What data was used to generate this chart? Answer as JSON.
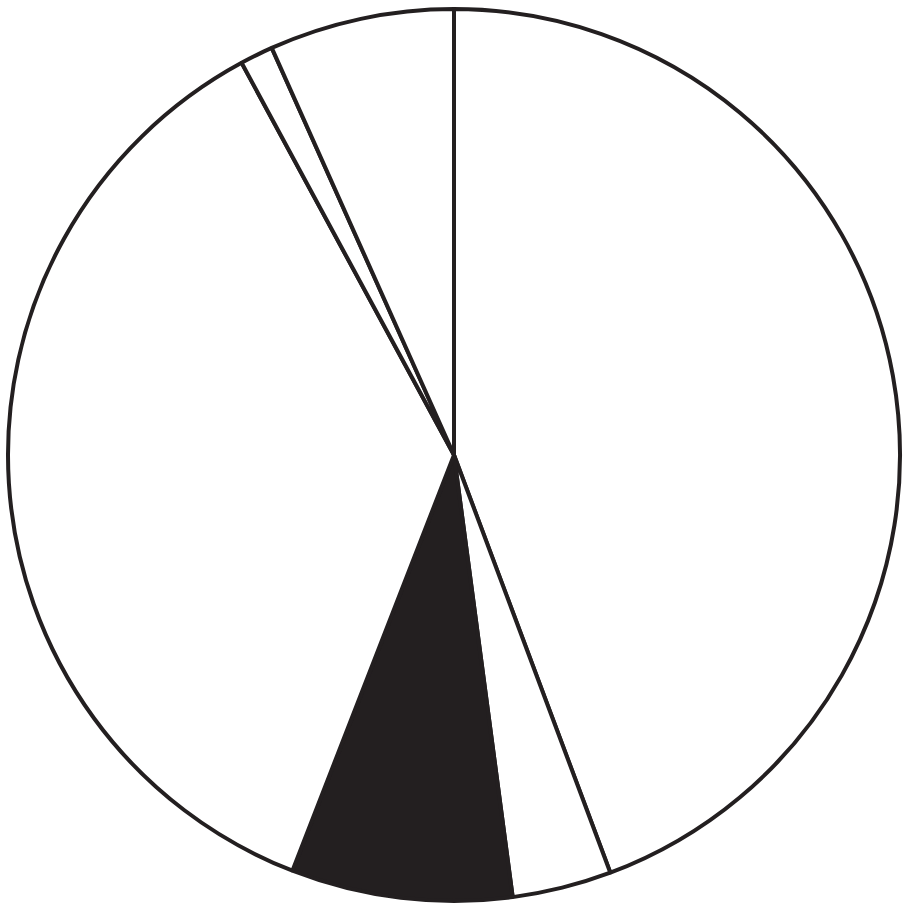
{
  "chart_data": {
    "type": "pie",
    "categories": [
      null,
      null,
      null,
      null,
      null,
      null
    ],
    "values": [
      44.3,
      3.6,
      8.0,
      36.2,
      1.2,
      6.7
    ],
    "colors": [
      "#ffffff",
      "#ffffff",
      "#231f20",
      "#ffffff",
      "#ffffff",
      "#ffffff"
    ],
    "legend": false
  }
}
